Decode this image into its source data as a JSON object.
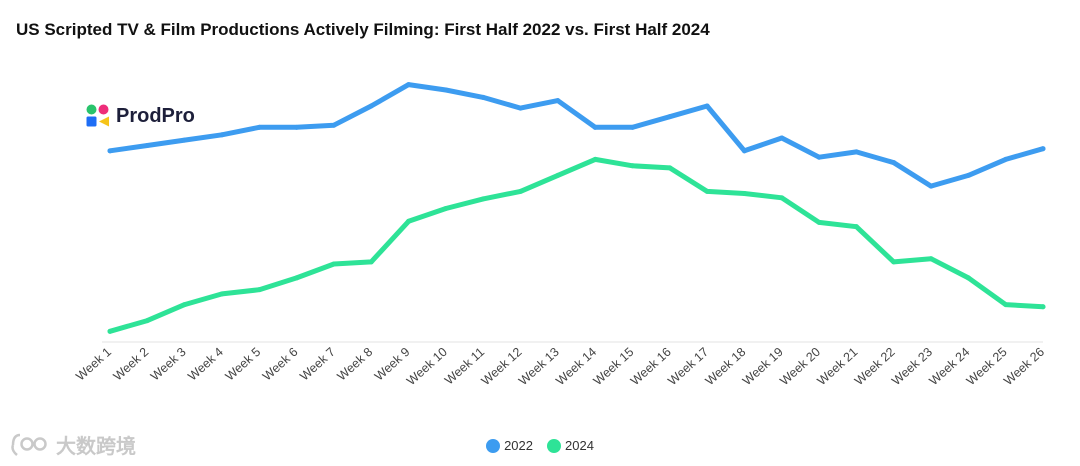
{
  "title": "US Scripted TV & Film Productions Actively Filming: First Half 2022 vs. First Half 2024",
  "logo": {
    "name": "ProdPro"
  },
  "watermark": {
    "text": "大数跨境"
  },
  "chart_data": {
    "type": "line",
    "title": "US Scripted TV & Film Productions Actively Filming: First Half 2022 vs. First Half 2024",
    "xlabel": "",
    "ylabel": "",
    "y_axis_visible": false,
    "ylim": [
      0,
      100
    ],
    "grid": false,
    "legend_position": "bottom-center",
    "categories": [
      "Week 1",
      "Week 2",
      "Week 3",
      "Week 4",
      "Week 5",
      "Week 6",
      "Week 7",
      "Week 8",
      "Week 9",
      "Week 10",
      "Week 11",
      "Week 12",
      "Week 13",
      "Week 14",
      "Week 15",
      "Week 16",
      "Week 17",
      "Week 18",
      "Week 19",
      "Week 20",
      "Week 21",
      "Week 22",
      "Week 23",
      "Week 24",
      "Week 25",
      "Week 26"
    ],
    "series": [
      {
        "name": "2022",
        "color": "#3d9cf0",
        "values": [
          71.6,
          73.6,
          75.6,
          77.6,
          80.4,
          80.4,
          81.2,
          88.4,
          96.4,
          94.4,
          91.6,
          87.6,
          90.4,
          80.4,
          80.4,
          84.4,
          88.4,
          71.6,
          76.4,
          69.2,
          71.2,
          67.2,
          58.4,
          62.4,
          68.4,
          72.4
        ]
      },
      {
        "name": "2024",
        "color": "#2ee397",
        "values": [
          4.0,
          8.0,
          14.0,
          18.0,
          19.6,
          24.0,
          29.2,
          30.0,
          45.2,
          50.0,
          53.6,
          56.4,
          62.4,
          68.4,
          66.0,
          65.2,
          56.4,
          55.6,
          54.0,
          44.8,
          43.2,
          30.0,
          31.2,
          24.0,
          14.0,
          13.2
        ]
      }
    ]
  }
}
